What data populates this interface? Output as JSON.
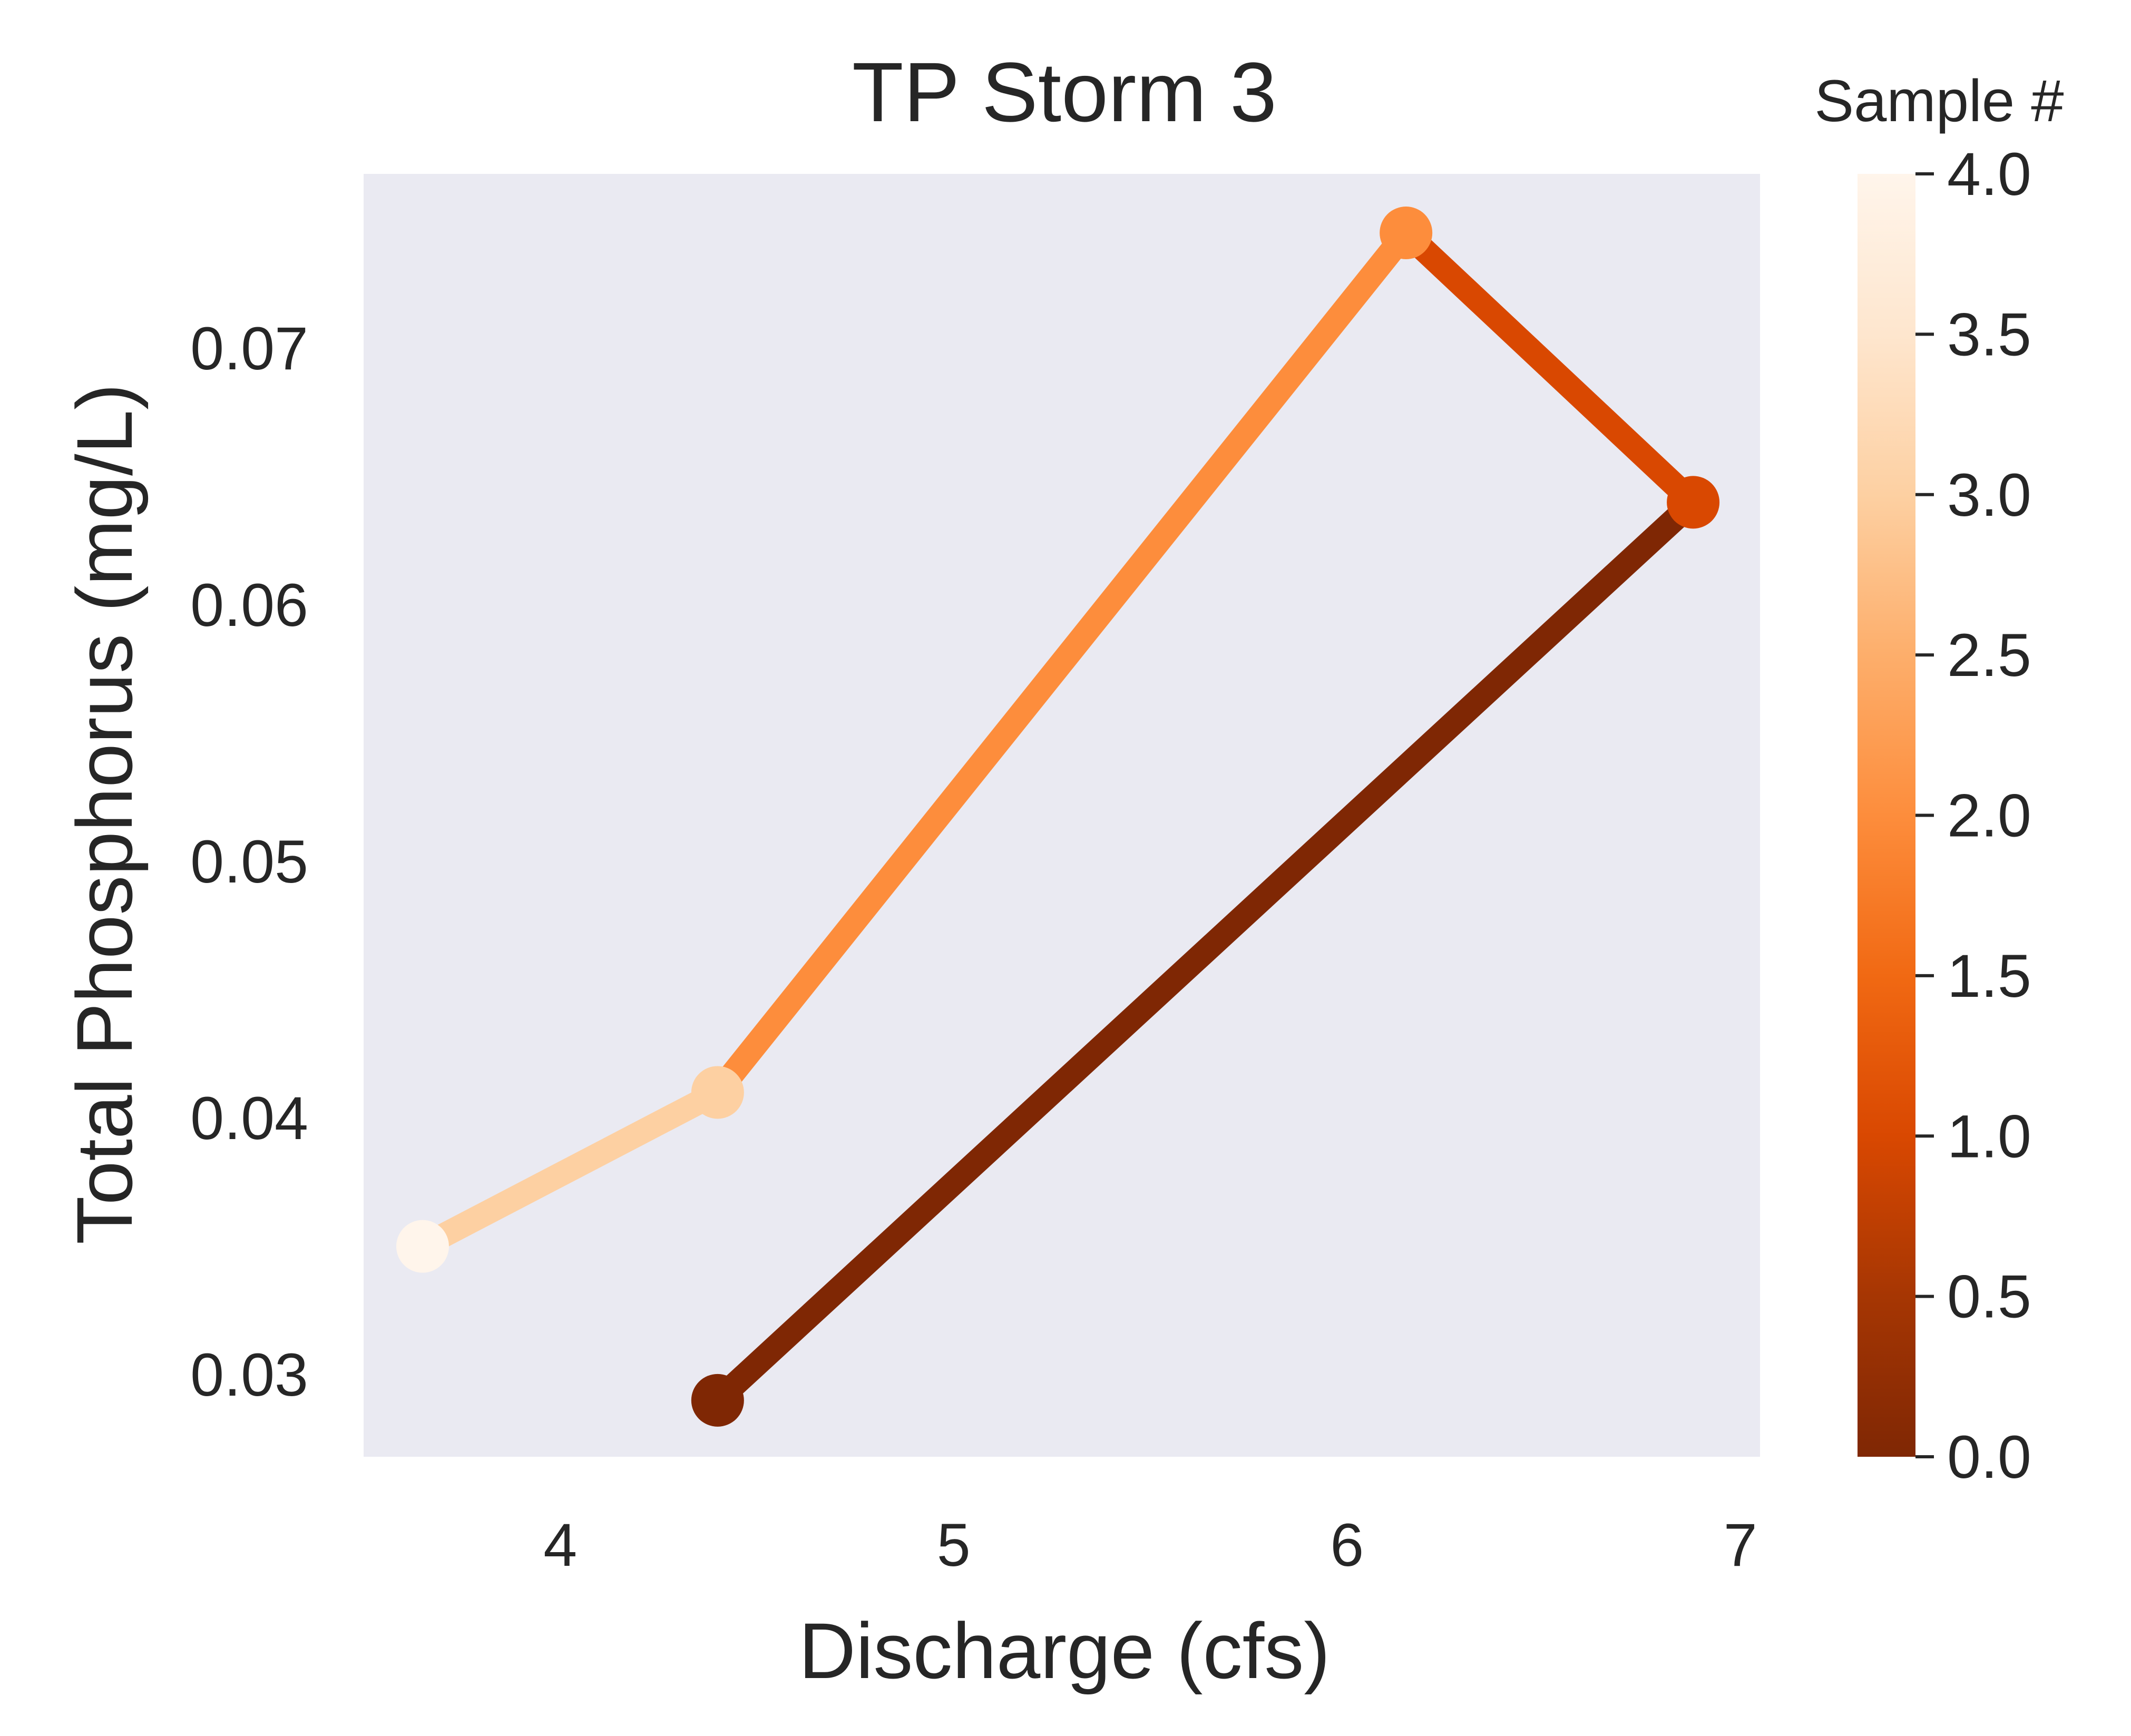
{
  "chart_data": {
    "type": "line",
    "title": "TP Storm 3",
    "xlabel": "Discharge (cfs)",
    "ylabel": "Total Phosphorus (mg/L)",
    "xlim": [
      3.5,
      7.05
    ],
    "ylim": [
      0.0268,
      0.0768
    ],
    "x_ticks": [
      4,
      5,
      6,
      7
    ],
    "x_tick_labels": [
      "4",
      "5",
      "6",
      "7"
    ],
    "y_ticks": [
      0.03,
      0.04,
      0.05,
      0.06,
      0.07
    ],
    "y_tick_labels": [
      "0.03",
      "0.04",
      "0.05",
      "0.06",
      "0.07"
    ],
    "grid": false,
    "plot_background": "#eaeaf2",
    "points": [
      {
        "sample": 0,
        "x": 4.4,
        "y": 0.029,
        "color": "#7f2704"
      },
      {
        "sample": 1,
        "x": 6.88,
        "y": 0.064,
        "color": "#d94801"
      },
      {
        "sample": 2,
        "x": 6.15,
        "y": 0.0745,
        "color": "#fd8d3c"
      },
      {
        "sample": 3,
        "x": 4.4,
        "y": 0.041,
        "color": "#fdd0a2"
      },
      {
        "sample": 4,
        "x": 3.65,
        "y": 0.035,
        "color": "#fff5eb"
      }
    ],
    "segments": [
      {
        "from": 0,
        "to": 1,
        "color": "#7f2704"
      },
      {
        "from": 1,
        "to": 2,
        "color": "#d94801"
      },
      {
        "from": 2,
        "to": 3,
        "color": "#fd8d3c"
      },
      {
        "from": 3,
        "to": 4,
        "color": "#fdd0a2"
      }
    ],
    "colorbar": {
      "title": "Sample #",
      "colormap": "Oranges_r",
      "range": [
        0.0,
        4.0
      ],
      "ticks": [
        0.0,
        0.5,
        1.0,
        1.5,
        2.0,
        2.5,
        3.0,
        3.5,
        4.0
      ],
      "tick_labels": [
        "0.0",
        "0.5",
        "1.0",
        "1.5",
        "2.0",
        "2.5",
        "3.0",
        "3.5",
        "4.0"
      ],
      "color_stops": [
        "#7f2704",
        "#a63603",
        "#d94801",
        "#f16913",
        "#fd8d3c",
        "#fdae6b",
        "#fdd0a2",
        "#fee6ce",
        "#fff5eb"
      ]
    }
  }
}
